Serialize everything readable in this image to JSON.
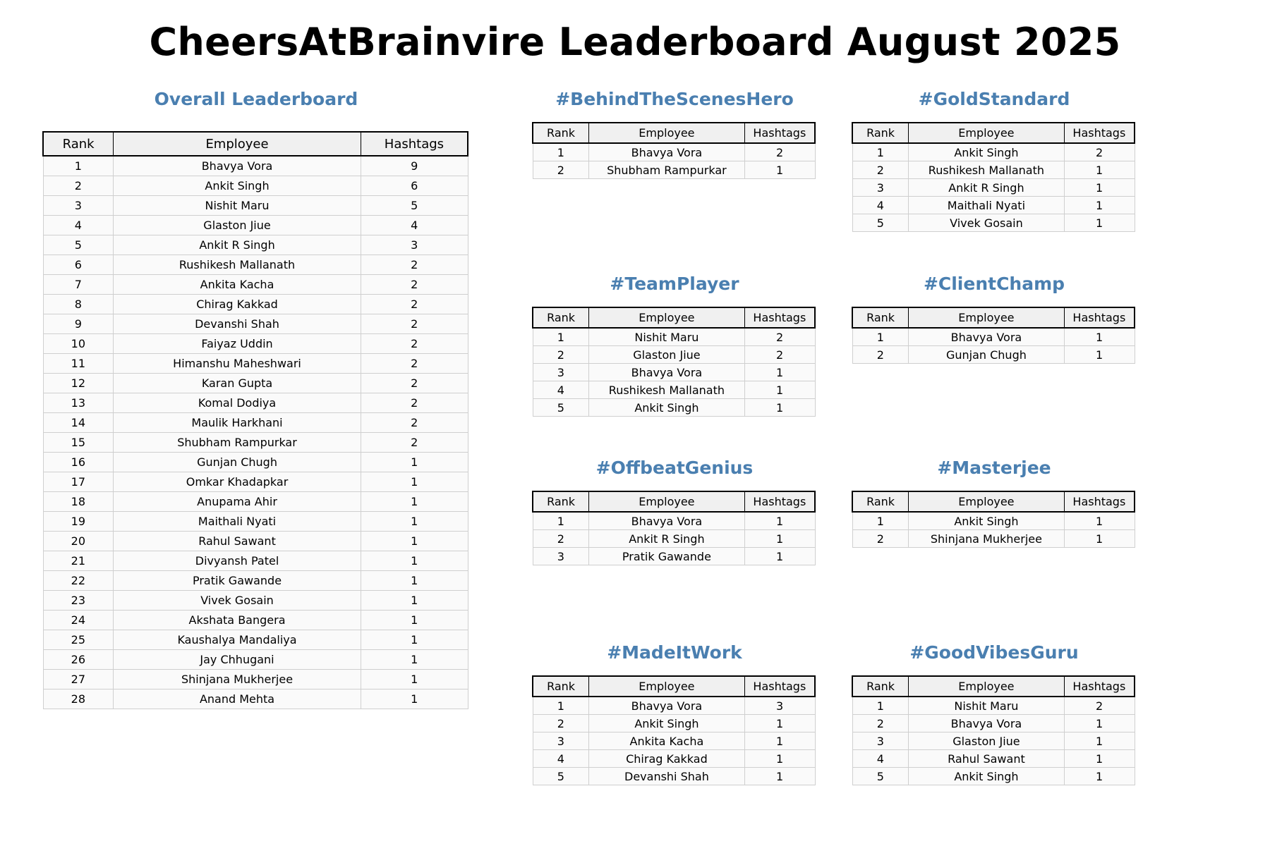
{
  "title": "CheersAtBrainvire Leaderboard August 2025",
  "columns": {
    "rank": "Rank",
    "employee": "Employee",
    "hashtags": "Hashtags"
  },
  "colors": {
    "section_title": "#4a7fb0"
  },
  "overall": {
    "title": "Overall Leaderboard",
    "rows": [
      [
        "1",
        "Bhavya Vora",
        "9"
      ],
      [
        "2",
        "Ankit Singh",
        "6"
      ],
      [
        "3",
        "Nishit Maru",
        "5"
      ],
      [
        "4",
        "Glaston Jiue",
        "4"
      ],
      [
        "5",
        "Ankit R Singh",
        "3"
      ],
      [
        "6",
        "Rushikesh Mallanath",
        "2"
      ],
      [
        "7",
        "Ankita Kacha",
        "2"
      ],
      [
        "8",
        "Chirag Kakkad",
        "2"
      ],
      [
        "9",
        "Devanshi Shah",
        "2"
      ],
      [
        "10",
        "Faiyaz Uddin",
        "2"
      ],
      [
        "11",
        "Himanshu Maheshwari",
        "2"
      ],
      [
        "12",
        "Karan Gupta",
        "2"
      ],
      [
        "13",
        "Komal Dodiya",
        "2"
      ],
      [
        "14",
        "Maulik Harkhani",
        "2"
      ],
      [
        "15",
        "Shubham Rampurkar",
        "2"
      ],
      [
        "16",
        "Gunjan Chugh",
        "1"
      ],
      [
        "17",
        "Omkar Khadapkar",
        "1"
      ],
      [
        "18",
        "Anupama Ahir",
        "1"
      ],
      [
        "19",
        "Maithali Nyati",
        "1"
      ],
      [
        "20",
        "Rahul Sawant",
        "1"
      ],
      [
        "21",
        "Divyansh Patel",
        "1"
      ],
      [
        "22",
        "Pratik Gawande",
        "1"
      ],
      [
        "23",
        "Vivek Gosain",
        "1"
      ],
      [
        "24",
        "Akshata Bangera",
        "1"
      ],
      [
        "25",
        "Kaushalya Mandaliya",
        "1"
      ],
      [
        "26",
        "Jay Chhugani",
        "1"
      ],
      [
        "27",
        "Shinjana Mukherjee",
        "1"
      ],
      [
        "28",
        "Anand Mehta",
        "1"
      ]
    ]
  },
  "sections": [
    {
      "id": "behind-the-scenes-hero",
      "title": "#BehindTheScenesHero",
      "rows": [
        [
          "1",
          "Bhavya Vora",
          "2"
        ],
        [
          "2",
          "Shubham Rampurkar",
          "1"
        ]
      ]
    },
    {
      "id": "gold-standard",
      "title": "#GoldStandard",
      "rows": [
        [
          "1",
          "Ankit Singh",
          "2"
        ],
        [
          "2",
          "Rushikesh Mallanath",
          "1"
        ],
        [
          "3",
          "Ankit R Singh",
          "1"
        ],
        [
          "4",
          "Maithali Nyati",
          "1"
        ],
        [
          "5",
          "Vivek Gosain",
          "1"
        ]
      ]
    },
    {
      "id": "team-player",
      "title": "#TeamPlayer",
      "rows": [
        [
          "1",
          "Nishit Maru",
          "2"
        ],
        [
          "2",
          "Glaston Jiue",
          "2"
        ],
        [
          "3",
          "Bhavya Vora",
          "1"
        ],
        [
          "4",
          "Rushikesh Mallanath",
          "1"
        ],
        [
          "5",
          "Ankit Singh",
          "1"
        ]
      ]
    },
    {
      "id": "client-champ",
      "title": "#ClientChamp",
      "rows": [
        [
          "1",
          "Bhavya Vora",
          "1"
        ],
        [
          "2",
          "Gunjan Chugh",
          "1"
        ]
      ]
    },
    {
      "id": "offbeat-genius",
      "title": "#OffbeatGenius",
      "rows": [
        [
          "1",
          "Bhavya Vora",
          "1"
        ],
        [
          "2",
          "Ankit R Singh",
          "1"
        ],
        [
          "3",
          "Pratik Gawande",
          "1"
        ]
      ]
    },
    {
      "id": "masterjee",
      "title": "#Masterjee",
      "rows": [
        [
          "1",
          "Ankit Singh",
          "1"
        ],
        [
          "2",
          "Shinjana Mukherjee",
          "1"
        ]
      ]
    },
    {
      "id": "made-it-work",
      "title": "#MadeItWork",
      "rows": [
        [
          "1",
          "Bhavya Vora",
          "3"
        ],
        [
          "2",
          "Ankit Singh",
          "1"
        ],
        [
          "3",
          "Ankita Kacha",
          "1"
        ],
        [
          "4",
          "Chirag Kakkad",
          "1"
        ],
        [
          "5",
          "Devanshi Shah",
          "1"
        ]
      ]
    },
    {
      "id": "good-vibes-guru",
      "title": "#GoodVibesGuru",
      "rows": [
        [
          "1",
          "Nishit Maru",
          "2"
        ],
        [
          "2",
          "Bhavya Vora",
          "1"
        ],
        [
          "3",
          "Glaston Jiue",
          "1"
        ],
        [
          "4",
          "Rahul Sawant",
          "1"
        ],
        [
          "5",
          "Ankit Singh",
          "1"
        ]
      ]
    }
  ]
}
